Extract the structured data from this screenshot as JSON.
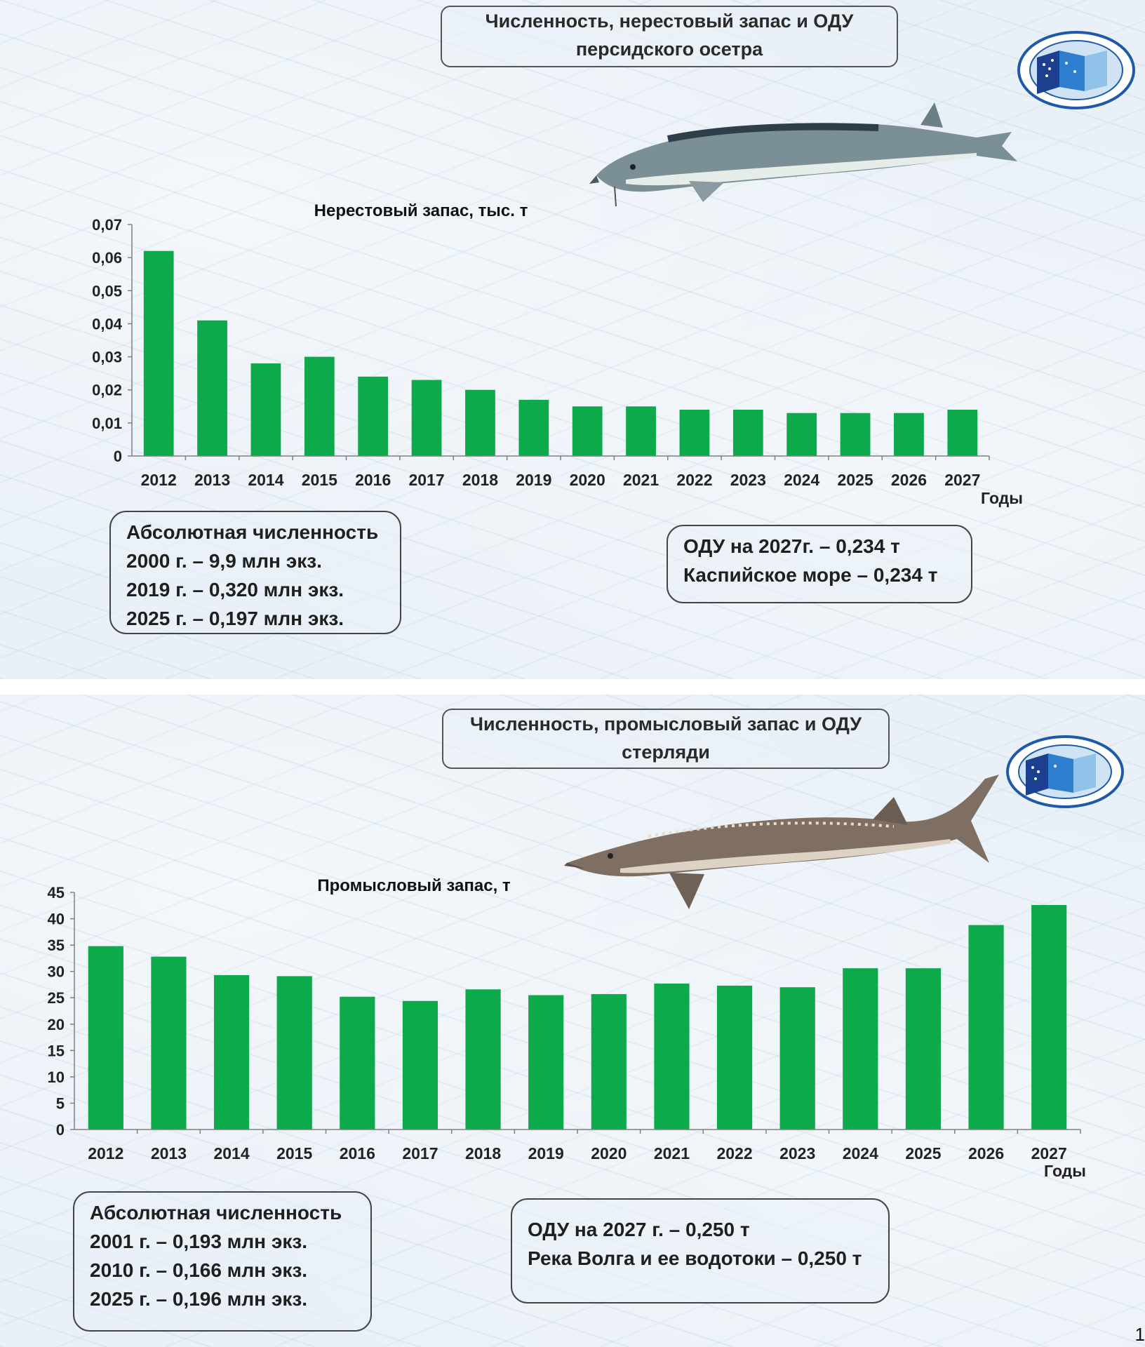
{
  "slide1": {
    "title_line1": "Численность, нерестовый запас и ОДУ",
    "title_line2": "персидского осетра",
    "info_left": {
      "heading": "Абсолютная численность",
      "lines": [
        "2000 г. –  9,9 млн экз.",
        "2019 г. –  0,320 млн экз.",
        "2025 г. –  0,197 млн экз."
      ]
    },
    "info_right": {
      "lines": [
        "ОДУ на 2027г. – 0,234 т",
        "Каспийское море – 0,234 т"
      ]
    }
  },
  "slide2": {
    "title_line1": "Численность, промысловый запас и ОДУ",
    "title_line2": "стерляди",
    "info_left": {
      "heading": "Абсолютная численность",
      "lines": [
        "2001 г. –  0,193 млн экз.",
        "2010 г. –  0,166 млн экз.",
        "2025 г. –  0,196 млн экз."
      ]
    },
    "info_right": {
      "lines": [
        "ОДУ на 2027 г. – 0,250 т",
        "Река Волга и ее водотоки –  0,250 т"
      ]
    }
  },
  "page_number": "1",
  "colors": {
    "bar": "#0daa4b",
    "axis": "#808080"
  },
  "chart_data": [
    {
      "type": "bar",
      "title": "Нерестовый запас, тыс. т",
      "xlabel": "Годы",
      "ylabel": "",
      "categories": [
        "2012",
        "2013",
        "2014",
        "2015",
        "2016",
        "2017",
        "2018",
        "2019",
        "2020",
        "2021",
        "2022",
        "2023",
        "2024",
        "2025",
        "2026",
        "2027"
      ],
      "values": [
        0.062,
        0.041,
        0.028,
        0.03,
        0.024,
        0.023,
        0.02,
        0.017,
        0.015,
        0.015,
        0.014,
        0.014,
        0.013,
        0.013,
        0.013,
        0.014
      ],
      "ylim": [
        0,
        0.07
      ],
      "yticks": [
        "0",
        "0,01",
        "0,02",
        "0,03",
        "0,04",
        "0,05",
        "0,06",
        "0,07"
      ],
      "ytick_values": [
        0,
        0.01,
        0.02,
        0.03,
        0.04,
        0.05,
        0.06,
        0.07
      ],
      "grid": false
    },
    {
      "type": "bar",
      "title": "Промысловый запас, т",
      "xlabel": "Годы",
      "ylabel": "",
      "categories": [
        "2012",
        "2013",
        "2014",
        "2015",
        "2016",
        "2017",
        "2018",
        "2019",
        "2020",
        "2021",
        "2022",
        "2023",
        "2024",
        "2025",
        "2026",
        "2027"
      ],
      "values": [
        34.8,
        32.8,
        29.3,
        29.1,
        25.2,
        24.4,
        26.6,
        25.5,
        25.7,
        27.7,
        27.3,
        27.0,
        30.6,
        30.6,
        38.8,
        42.6
      ],
      "ylim": [
        0,
        45
      ],
      "yticks": [
        "0",
        "5",
        "10",
        "15",
        "20",
        "25",
        "30",
        "35",
        "40",
        "45"
      ],
      "ytick_values": [
        0,
        5,
        10,
        15,
        20,
        25,
        30,
        35,
        40,
        45
      ],
      "grid": false
    }
  ]
}
